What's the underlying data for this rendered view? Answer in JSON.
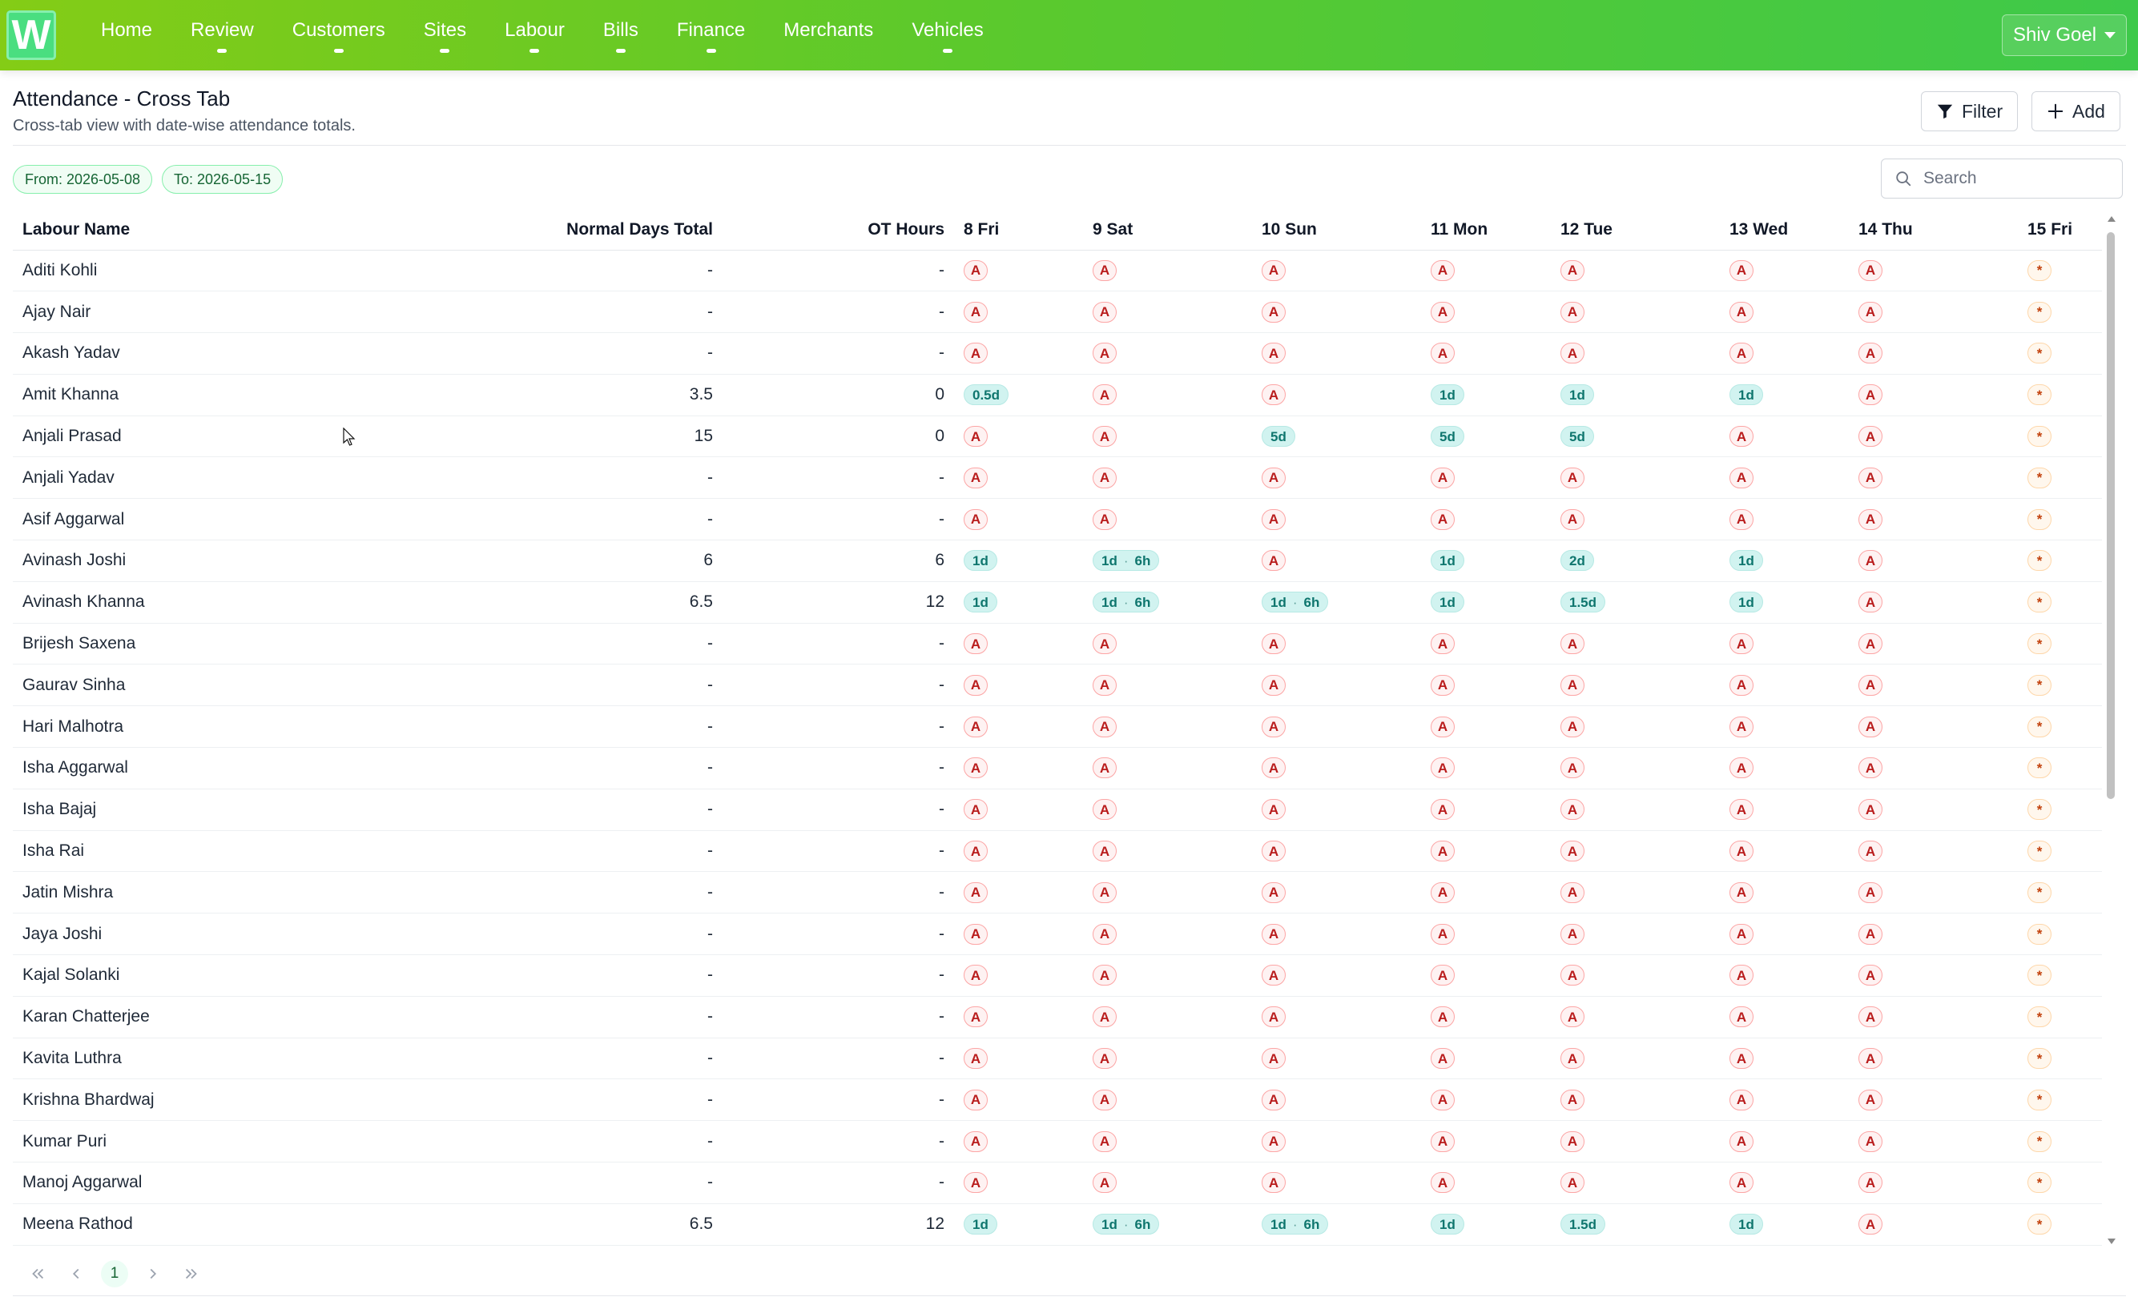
{
  "app": {
    "logo_letter": "W"
  },
  "nav": [
    {
      "label": "Home",
      "has_dot": false
    },
    {
      "label": "Review",
      "has_dot": true
    },
    {
      "label": "Customers",
      "has_dot": true
    },
    {
      "label": "Sites",
      "has_dot": true
    },
    {
      "label": "Labour",
      "has_dot": true
    },
    {
      "label": "Bills",
      "has_dot": true
    },
    {
      "label": "Finance",
      "has_dot": true
    },
    {
      "label": "Merchants",
      "has_dot": false
    },
    {
      "label": "Vehicles",
      "has_dot": true
    }
  ],
  "user": {
    "name": "Shiv Goel"
  },
  "page": {
    "title": "Attendance - Cross Tab",
    "subtitle": "Cross-tab view with date-wise attendance totals.",
    "filter_label": "Filter",
    "add_label": "Add",
    "from_chip": "From: 2026-05-08",
    "to_chip": "To: 2026-05-15",
    "search_placeholder": "Search"
  },
  "colors": {
    "nav_gradient_start": "#84cc16",
    "nav_gradient_end": "#3ec94a",
    "absent": "#b91c1c",
    "present": "#0f766e",
    "pending": "#c2410c"
  },
  "table": {
    "columns": [
      "Labour Name",
      "Normal Days Total",
      "OT Hours",
      "8 Fri",
      "9 Sat",
      "10 Sun",
      "11 Mon",
      "12 Tue",
      "13 Wed",
      "14 Thu",
      "15 Fri"
    ],
    "rows": [
      {
        "name": "Aditi Kohli",
        "days": "-",
        "ot": "-",
        "cells": [
          "A",
          "A",
          "A",
          "A",
          "A",
          "A",
          "A",
          "*"
        ]
      },
      {
        "name": "Ajay Nair",
        "days": "-",
        "ot": "-",
        "cells": [
          "A",
          "A",
          "A",
          "A",
          "A",
          "A",
          "A",
          "*"
        ]
      },
      {
        "name": "Akash Yadav",
        "days": "-",
        "ot": "-",
        "cells": [
          "A",
          "A",
          "A",
          "A",
          "A",
          "A",
          "A",
          "*"
        ]
      },
      {
        "name": "Amit Khanna",
        "days": "3.5",
        "ot": "0",
        "cells": [
          "0.5d",
          "A",
          "A",
          "1d",
          "1d",
          "1d",
          "A",
          "*"
        ]
      },
      {
        "name": "Anjali Prasad",
        "days": "15",
        "ot": "0",
        "cells": [
          "A",
          "A",
          "5d",
          "5d",
          "5d",
          "A",
          "A",
          "*"
        ]
      },
      {
        "name": "Anjali Yadav",
        "days": "-",
        "ot": "-",
        "cells": [
          "A",
          "A",
          "A",
          "A",
          "A",
          "A",
          "A",
          "*"
        ]
      },
      {
        "name": "Asif Aggarwal",
        "days": "-",
        "ot": "-",
        "cells": [
          "A",
          "A",
          "A",
          "A",
          "A",
          "A",
          "A",
          "*"
        ]
      },
      {
        "name": "Avinash Joshi",
        "days": "6",
        "ot": "6",
        "cells": [
          "1d",
          "1d|6h",
          "A",
          "1d",
          "2d",
          "1d",
          "A",
          "*"
        ]
      },
      {
        "name": "Avinash Khanna",
        "days": "6.5",
        "ot": "12",
        "cells": [
          "1d",
          "1d|6h",
          "1d|6h",
          "1d",
          "1.5d",
          "1d",
          "A",
          "*"
        ]
      },
      {
        "name": "Brijesh Saxena",
        "days": "-",
        "ot": "-",
        "cells": [
          "A",
          "A",
          "A",
          "A",
          "A",
          "A",
          "A",
          "*"
        ]
      },
      {
        "name": "Gaurav Sinha",
        "days": "-",
        "ot": "-",
        "cells": [
          "A",
          "A",
          "A",
          "A",
          "A",
          "A",
          "A",
          "*"
        ]
      },
      {
        "name": "Hari Malhotra",
        "days": "-",
        "ot": "-",
        "cells": [
          "A",
          "A",
          "A",
          "A",
          "A",
          "A",
          "A",
          "*"
        ]
      },
      {
        "name": "Isha Aggarwal",
        "days": "-",
        "ot": "-",
        "cells": [
          "A",
          "A",
          "A",
          "A",
          "A",
          "A",
          "A",
          "*"
        ]
      },
      {
        "name": "Isha Bajaj",
        "days": "-",
        "ot": "-",
        "cells": [
          "A",
          "A",
          "A",
          "A",
          "A",
          "A",
          "A",
          "*"
        ]
      },
      {
        "name": "Isha Rai",
        "days": "-",
        "ot": "-",
        "cells": [
          "A",
          "A",
          "A",
          "A",
          "A",
          "A",
          "A",
          "*"
        ]
      },
      {
        "name": "Jatin Mishra",
        "days": "-",
        "ot": "-",
        "cells": [
          "A",
          "A",
          "A",
          "A",
          "A",
          "A",
          "A",
          "*"
        ]
      },
      {
        "name": "Jaya Joshi",
        "days": "-",
        "ot": "-",
        "cells": [
          "A",
          "A",
          "A",
          "A",
          "A",
          "A",
          "A",
          "*"
        ]
      },
      {
        "name": "Kajal Solanki",
        "days": "-",
        "ot": "-",
        "cells": [
          "A",
          "A",
          "A",
          "A",
          "A",
          "A",
          "A",
          "*"
        ]
      },
      {
        "name": "Karan Chatterjee",
        "days": "-",
        "ot": "-",
        "cells": [
          "A",
          "A",
          "A",
          "A",
          "A",
          "A",
          "A",
          "*"
        ]
      },
      {
        "name": "Kavita Luthra",
        "days": "-",
        "ot": "-",
        "cells": [
          "A",
          "A",
          "A",
          "A",
          "A",
          "A",
          "A",
          "*"
        ]
      },
      {
        "name": "Krishna Bhardwaj",
        "days": "-",
        "ot": "-",
        "cells": [
          "A",
          "A",
          "A",
          "A",
          "A",
          "A",
          "A",
          "*"
        ]
      },
      {
        "name": "Kumar Puri",
        "days": "-",
        "ot": "-",
        "cells": [
          "A",
          "A",
          "A",
          "A",
          "A",
          "A",
          "A",
          "*"
        ]
      },
      {
        "name": "Manoj Aggarwal",
        "days": "-",
        "ot": "-",
        "cells": [
          "A",
          "A",
          "A",
          "A",
          "A",
          "A",
          "A",
          "*"
        ]
      },
      {
        "name": "Meena Rathod",
        "days": "6.5",
        "ot": "12",
        "cells": [
          "1d",
          "1d|6h",
          "1d|6h",
          "1d",
          "1.5d",
          "1d",
          "A",
          "*"
        ]
      }
    ]
  },
  "pagination": {
    "current_page": "1"
  }
}
